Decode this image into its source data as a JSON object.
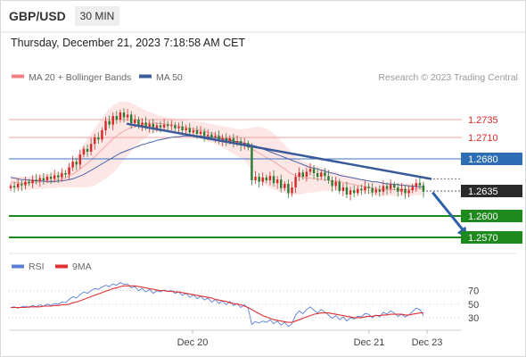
{
  "header": {
    "symbol": "GBP/USD",
    "timeframe": "30 MIN",
    "timestamp": "Thursday, December 21, 2023 7:18:58 AM CET"
  },
  "legend": {
    "items": [
      {
        "label": "MA 20 + Bollinger Bands",
        "color": "#f08080"
      },
      {
        "label": "MA 50",
        "color": "#3b5a9a"
      }
    ],
    "credit": "Research © 2023 Trading Central"
  },
  "chart_data": [
    {
      "type": "candlestick",
      "title": "",
      "ylim": [
        1.255,
        1.2765
      ],
      "x_labels": [
        "Dec 20",
        "Dec 21",
        "Dec 23"
      ],
      "levels": [
        {
          "value": 1.2735,
          "label": "1.2735",
          "kind": "resistance",
          "color": "#e34a4a"
        },
        {
          "value": 1.271,
          "label": "1.2710",
          "kind": "resistance",
          "color": "#e34a4a"
        },
        {
          "value": 1.268,
          "label": "1.2680",
          "kind": "pivot",
          "color": "#2f6db5"
        },
        {
          "value": 1.2635,
          "label": "1.2635",
          "kind": "last",
          "color": "#2a2a2a"
        },
        {
          "value": 1.26,
          "label": "1.2600",
          "kind": "support",
          "color": "#1e8a1e"
        },
        {
          "value": 1.257,
          "label": "1.2570",
          "kind": "support",
          "color": "#1e8a1e"
        }
      ],
      "close": [
        1.2642,
        1.264,
        1.2645,
        1.2643,
        1.2648,
        1.2646,
        1.2651,
        1.2649,
        1.2653,
        1.265,
        1.2655,
        1.2652,
        1.2657,
        1.2654,
        1.266,
        1.2658,
        1.2668,
        1.2676,
        1.2672,
        1.2686,
        1.2694,
        1.269,
        1.2701,
        1.271,
        1.2707,
        1.272,
        1.2733,
        1.2728,
        1.274,
        1.2735,
        1.2745,
        1.2738,
        1.2742,
        1.273,
        1.2735,
        1.2726,
        1.2731,
        1.2725,
        1.2729,
        1.2722,
        1.2727,
        1.2724,
        1.2728,
        1.2726,
        1.2727,
        1.2723,
        1.2725,
        1.272,
        1.2723,
        1.2717,
        1.272,
        1.2715,
        1.2718,
        1.2712,
        1.2714,
        1.271,
        1.2712,
        1.2706,
        1.2709,
        1.2704,
        1.2709,
        1.2703,
        1.2705,
        1.2699,
        1.2702,
        1.2696,
        1.265,
        1.2655,
        1.2648,
        1.2654,
        1.265,
        1.2656,
        1.2646,
        1.2651,
        1.2639,
        1.2645,
        1.2632,
        1.264,
        1.2655,
        1.2661,
        1.2655,
        1.2662,
        1.2666,
        1.266,
        1.2655,
        1.2661,
        1.2656,
        1.265,
        1.2642,
        1.2648,
        1.2635,
        1.264,
        1.263,
        1.2636,
        1.2632,
        1.2638,
        1.2636,
        1.2641,
        1.2639,
        1.2633,
        1.2637,
        1.2634,
        1.2642,
        1.2638,
        1.2644,
        1.264,
        1.2634,
        1.2638,
        1.2632,
        1.2636,
        1.2641,
        1.2646,
        1.2643,
        1.2634
      ],
      "ma20": [
        1.2648,
        1.2647,
        1.2646,
        1.2646,
        1.2646,
        1.2646,
        1.2647,
        1.2647,
        1.2648,
        1.2648,
        1.2649,
        1.2649,
        1.265,
        1.2651,
        1.2652,
        1.2653,
        1.2656,
        1.2659,
        1.2662,
        1.2666,
        1.267,
        1.2674,
        1.2678,
        1.2683,
        1.2688,
        1.2693,
        1.2698,
        1.2703,
        1.2708,
        1.2712,
        1.2716,
        1.2719,
        1.2722,
        1.2724,
        1.2726,
        1.2727,
        1.2728,
        1.2729,
        1.273,
        1.273,
        1.273,
        1.2729,
        1.2729,
        1.2728,
        1.2728,
        1.2727,
        1.2726,
        1.2725,
        1.2724,
        1.2723,
        1.2722,
        1.2721,
        1.272,
        1.2719,
        1.2717,
        1.2716,
        1.2714,
        1.2712,
        1.2711,
        1.2709,
        1.2707,
        1.2705,
        1.2703,
        1.2701,
        1.27,
        1.2697,
        1.2694,
        1.2691,
        1.2688,
        1.2685,
        1.2682,
        1.2679,
        1.2676,
        1.2673,
        1.2669,
        1.2666,
        1.2662,
        1.2659,
        1.2657,
        1.2655,
        1.2654,
        1.2653,
        1.2653,
        1.2652,
        1.2652,
        1.2651,
        1.2651,
        1.265,
        1.2649,
        1.2649,
        1.2648,
        1.2647,
        1.2646,
        1.2645,
        1.2644,
        1.2643,
        1.2642,
        1.2641,
        1.264,
        1.2639,
        1.2638,
        1.2637,
        1.2637,
        1.2637,
        1.2637,
        1.2637,
        1.2637,
        1.2637,
        1.2637,
        1.2637,
        1.2637,
        1.2638,
        1.2638,
        1.2638
      ],
      "bb_width": [
        0.0009,
        0.0009,
        0.0009,
        0.0009,
        0.0009,
        0.0009,
        0.0009,
        0.001,
        0.001,
        0.001,
        0.001,
        0.001,
        0.0011,
        0.0011,
        0.0012,
        0.0013,
        0.0016,
        0.0019,
        0.0022,
        0.0026,
        0.003,
        0.0034,
        0.0037,
        0.004,
        0.0042,
        0.0044,
        0.0046,
        0.0047,
        0.0047,
        0.0046,
        0.0044,
        0.0041,
        0.0038,
        0.0034,
        0.003,
        0.0026,
        0.0022,
        0.0019,
        0.0016,
        0.0014,
        0.0012,
        0.0011,
        0.001,
        0.001,
        0.0009,
        0.0009,
        0.0009,
        0.001,
        0.001,
        0.001,
        0.0011,
        0.0011,
        0.0012,
        0.0012,
        0.0013,
        0.0013,
        0.0014,
        0.0014,
        0.0015,
        0.0016,
        0.0017,
        0.0018,
        0.0019,
        0.002,
        0.0022,
        0.0026,
        0.003,
        0.0034,
        0.0037,
        0.0039,
        0.004,
        0.004,
        0.0039,
        0.0038,
        0.0036,
        0.0034,
        0.0032,
        0.0029,
        0.0027,
        0.0025,
        0.0023,
        0.0021,
        0.002,
        0.0019,
        0.0018,
        0.0017,
        0.0016,
        0.0015,
        0.0014,
        0.0013,
        0.0012,
        0.0011,
        0.0011,
        0.001,
        0.001,
        0.001,
        0.0009,
        0.0009,
        0.0009,
        0.0009,
        0.0009,
        0.0009,
        0.0009,
        0.0009,
        0.0009,
        0.0009,
        0.0009,
        0.0009,
        0.0009,
        0.0009,
        0.0009,
        0.0009,
        0.0009,
        0.0009,
        0.0009
      ],
      "ma50": [
        1.2654,
        1.2653,
        1.2652,
        1.2651,
        1.2651,
        1.265,
        1.265,
        1.2649,
        1.2649,
        1.2649,
        1.2648,
        1.2648,
        1.2648,
        1.2649,
        1.2649,
        1.265,
        1.2651,
        1.2652,
        1.2654,
        1.2656,
        1.2658,
        1.2661,
        1.2664,
        1.2667,
        1.267,
        1.2673,
        1.2676,
        1.2679,
        1.2682,
        1.2685,
        1.2688,
        1.269,
        1.2692,
        1.2694,
        1.2696,
        1.2698,
        1.27,
        1.2701,
        1.2703,
        1.2704,
        1.2706,
        1.2707,
        1.2708,
        1.2709,
        1.271,
        1.2711,
        1.2711,
        1.2712,
        1.2712,
        1.2712,
        1.2712,
        1.2712,
        1.2712,
        1.2711,
        1.2711,
        1.271,
        1.271,
        1.2709,
        1.2708,
        1.2707,
        1.2706,
        1.2705,
        1.2704,
        1.2703,
        1.2702,
        1.2701,
        1.2699,
        1.2698,
        1.2696,
        1.2694,
        1.2692,
        1.269,
        1.2688,
        1.2686,
        1.2684,
        1.2682,
        1.268,
        1.2678,
        1.2676,
        1.2674,
        1.2672,
        1.267,
        1.2668,
        1.2667,
        1.2666,
        1.2664,
        1.2663,
        1.2661,
        1.266,
        1.2659,
        1.2657,
        1.2656,
        1.2655,
        1.2654,
        1.2653,
        1.2652,
        1.2651,
        1.265,
        1.2649,
        1.2648,
        1.2648,
        1.2647,
        1.2646,
        1.2645,
        1.2645,
        1.2644,
        1.2644,
        1.2643,
        1.2643,
        1.2642,
        1.2642,
        1.2641,
        1.2641,
        1.2641
      ],
      "trendline": {
        "from_index": 32,
        "from_value": 1.2729,
        "to_index": 115,
        "to_value": 1.2652
      },
      "projection": {
        "from_index": 115,
        "from_value": 1.2633,
        "to_index": 125,
        "to_value": 1.257
      }
    },
    {
      "type": "line",
      "title": "",
      "ylim": [
        14,
        88
      ],
      "yticks": [
        70,
        50,
        30
      ],
      "series": [
        {
          "name": "RSI",
          "color": "#5b7fd6",
          "values": [
            45,
            46,
            44,
            46,
            47,
            45,
            48,
            46,
            49,
            47,
            50,
            48,
            51,
            50,
            53,
            52,
            57,
            61,
            59,
            64,
            68,
            66,
            70,
            73,
            72,
            75,
            78,
            76,
            80,
            78,
            82,
            79,
            80,
            74,
            76,
            70,
            73,
            68,
            72,
            66,
            70,
            68,
            71,
            69,
            70,
            66,
            68,
            63,
            66,
            60,
            64,
            58,
            62,
            56,
            59,
            53,
            57,
            51,
            55,
            49,
            54,
            48,
            51,
            45,
            49,
            44,
            20,
            24,
            22,
            25,
            23,
            27,
            21,
            25,
            19,
            23,
            17,
            21,
            34,
            40,
            36,
            42,
            46,
            41,
            37,
            42,
            38,
            34,
            29,
            33,
            27,
            31,
            25,
            30,
            28,
            32,
            31,
            36,
            35,
            30,
            34,
            31,
            38,
            35,
            40,
            37,
            32,
            35,
            31,
            34,
            39,
            44,
            42,
            33
          ],
          "visible": true
        },
        {
          "name": "9MA",
          "color": "#e03030",
          "values": [
            45,
            45,
            45,
            45,
            45,
            46,
            46,
            46,
            46,
            47,
            47,
            47,
            48,
            48,
            49,
            49,
            50,
            52,
            53,
            55,
            57,
            59,
            61,
            63,
            65,
            67,
            69,
            71,
            73,
            74,
            76,
            77,
            77,
            77,
            77,
            76,
            75,
            74,
            73,
            72,
            71,
            70,
            70,
            69,
            69,
            68,
            68,
            67,
            66,
            65,
            64,
            63,
            62,
            61,
            60,
            59,
            57,
            56,
            55,
            54,
            52,
            51,
            50,
            49,
            47,
            45,
            42,
            39,
            36,
            33,
            31,
            29,
            27,
            26,
            25,
            24,
            23,
            23,
            25,
            27,
            29,
            31,
            33,
            35,
            36,
            37,
            37,
            37,
            36,
            35,
            34,
            33,
            32,
            31,
            30,
            30,
            30,
            31,
            32,
            32,
            33,
            33,
            34,
            34,
            35,
            35,
            35,
            35,
            34,
            34,
            35,
            36,
            37,
            37
          ],
          "visible": true
        }
      ]
    }
  ]
}
